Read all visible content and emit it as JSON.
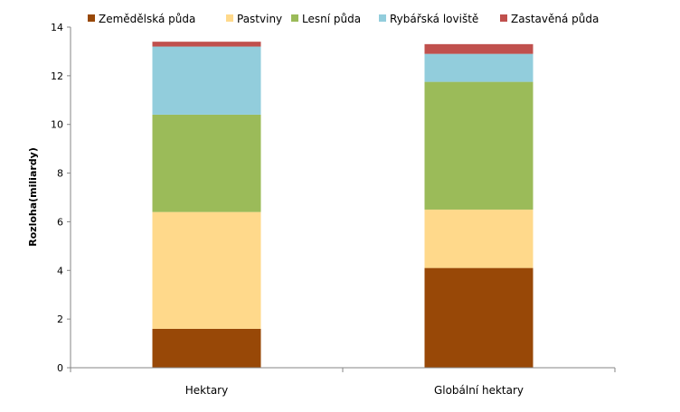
{
  "chart_data": {
    "type": "bar",
    "stacked": true,
    "title": "",
    "xlabel": "",
    "ylabel": "Rozloha(miliardy)",
    "ylim": [
      0,
      14
    ],
    "yticks": [
      0,
      2,
      4,
      6,
      8,
      10,
      12,
      14
    ],
    "categories": [
      "Hektary",
      "Globální hektary"
    ],
    "legend_position": "top",
    "grid": false,
    "series": [
      {
        "name": "Zemědělská půda",
        "color": "#984807",
        "values": [
          1.6,
          4.1
        ]
      },
      {
        "name": "Pastviny",
        "color": "#FFD98B",
        "values": [
          4.8,
          2.4
        ]
      },
      {
        "name": "Lesní půda",
        "color": "#9BBB59",
        "values": [
          4.0,
          5.25
        ]
      },
      {
        "name": "Rybářská loviště",
        "color": "#92CDDC",
        "values": [
          2.8,
          1.15
        ]
      },
      {
        "name": "Zastavěná půda",
        "color": "#C0504D",
        "values": [
          0.2,
          0.4
        ]
      }
    ]
  }
}
